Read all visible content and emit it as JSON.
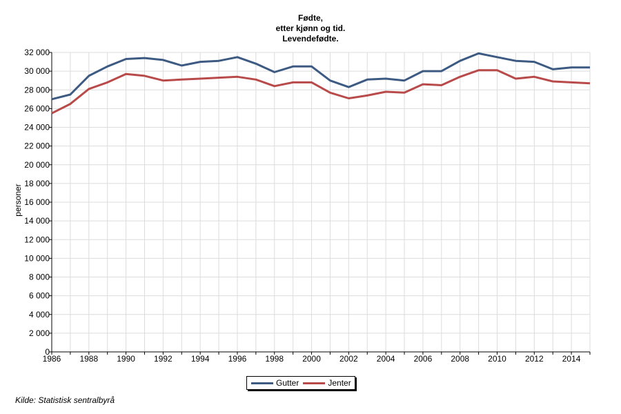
{
  "chart_data": {
    "type": "line",
    "title_lines": [
      "Fødte,",
      "etter kjønn og tid.",
      "Levendefødte."
    ],
    "xlabel": "",
    "ylabel": "personer",
    "xlim": [
      1986,
      2015
    ],
    "ylim": [
      0,
      32000
    ],
    "x_ticks": [
      1986,
      1988,
      1990,
      1992,
      1994,
      1996,
      1998,
      2000,
      2002,
      2004,
      2006,
      2008,
      2010,
      2012,
      2014
    ],
    "y_ticks": [
      0,
      2000,
      4000,
      6000,
      8000,
      10000,
      12000,
      14000,
      16000,
      18000,
      20000,
      22000,
      24000,
      26000,
      28000,
      30000,
      32000
    ],
    "y_tick_labels": [
      "0",
      "2 000",
      "4 000",
      "6 000",
      "8 000",
      "10 000",
      "12 000",
      "14 000",
      "16 000",
      "18 000",
      "20 000",
      "22 000",
      "24 000",
      "26 000",
      "28 000",
      "30 000",
      "32 000"
    ],
    "grid": true,
    "legend_position": "bottom-center",
    "x": [
      1986,
      1987,
      1988,
      1989,
      1990,
      1991,
      1992,
      1993,
      1994,
      1995,
      1996,
      1997,
      1998,
      1999,
      2000,
      2001,
      2002,
      2003,
      2004,
      2005,
      2006,
      2007,
      2008,
      2009,
      2010,
      2011,
      2012,
      2013,
      2014,
      2015
    ],
    "series": [
      {
        "name": "Gutter",
        "color": "#3c5a82",
        "values": [
          27000,
          27500,
          29500,
          30500,
          31300,
          31400,
          31200,
          30600,
          31000,
          31100,
          31500,
          30800,
          29900,
          30500,
          30500,
          29000,
          28300,
          29100,
          29200,
          29000,
          30000,
          30000,
          31100,
          31900,
          31500,
          31100,
          31000,
          30200,
          30400,
          30400
        ]
      },
      {
        "name": "Jenter",
        "color": "#b94a4a",
        "values": [
          25500,
          26500,
          28100,
          28800,
          29700,
          29500,
          29000,
          29100,
          29200,
          29300,
          29400,
          29100,
          28400,
          28800,
          28800,
          27700,
          27100,
          27400,
          27800,
          27700,
          28600,
          28500,
          29400,
          30100,
          30100,
          29200,
          29400,
          28900,
          28800,
          28700
        ]
      }
    ]
  },
  "source": "Kilde: Statistisk sentralbyrå"
}
